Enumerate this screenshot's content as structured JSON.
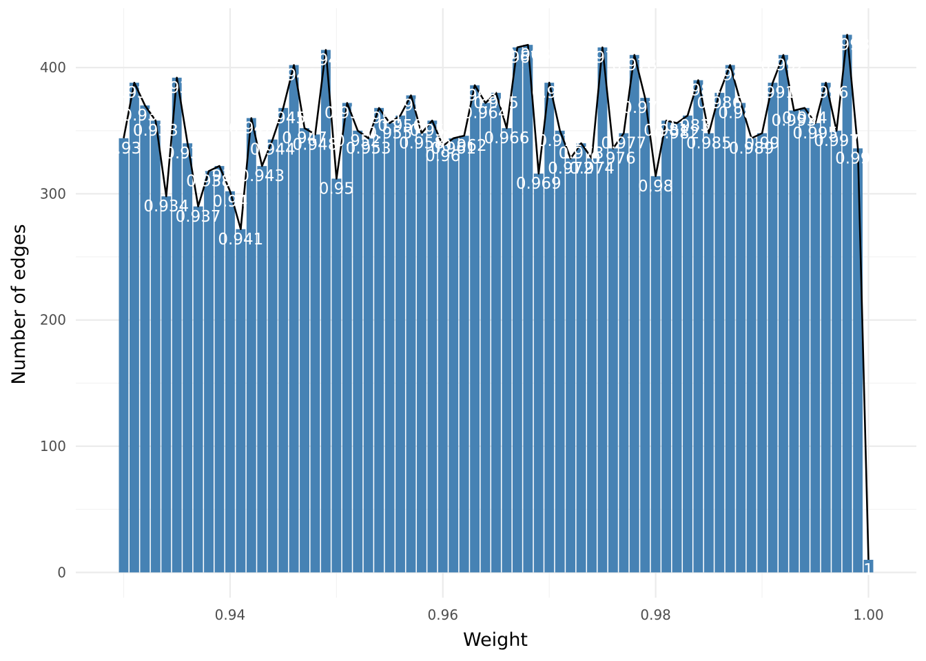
{
  "chart_data": {
    "type": "bar",
    "xlabel": "Weight",
    "ylabel": "Number of edges",
    "xlim": [
      0.9255,
      1.0045
    ],
    "ylim": [
      -20,
      447
    ],
    "x_ticks": [
      0.94,
      0.96,
      0.98,
      1.0
    ],
    "x_tick_labels": [
      "0.94",
      "0.96",
      "0.98",
      "1.00"
    ],
    "x_minor_ticks": [
      0.93,
      0.95,
      0.97,
      0.99
    ],
    "y_ticks": [
      0,
      100,
      200,
      300,
      400
    ],
    "y_tick_labels": [
      "0",
      "100",
      "200",
      "300",
      "400"
    ],
    "y_minor_ticks": [
      50,
      150,
      250,
      350
    ],
    "grid": true,
    "bar_color": "#4682b4",
    "line_color": "#000000",
    "overlay": "line through bar tops",
    "bars": [
      {
        "x": 0.93,
        "y": 344,
        "label": "0.93"
      },
      {
        "x": 0.931,
        "y": 388,
        "label": "0.931"
      },
      {
        "x": 0.932,
        "y": 370,
        "label": "0.932"
      },
      {
        "x": 0.933,
        "y": 358,
        "label": "0.933"
      },
      {
        "x": 0.934,
        "y": 298,
        "label": "0.934"
      },
      {
        "x": 0.935,
        "y": 392,
        "label": "0.935"
      },
      {
        "x": 0.936,
        "y": 340,
        "label": "0.936"
      },
      {
        "x": 0.937,
        "y": 290,
        "label": "0.937"
      },
      {
        "x": 0.938,
        "y": 318,
        "label": "0.938"
      },
      {
        "x": 0.939,
        "y": 322,
        "label": "0.939"
      },
      {
        "x": 0.94,
        "y": 302,
        "label": "0.94"
      },
      {
        "x": 0.941,
        "y": 272,
        "label": "0.941"
      },
      {
        "x": 0.942,
        "y": 360,
        "label": "0.942"
      },
      {
        "x": 0.943,
        "y": 322,
        "label": "0.943"
      },
      {
        "x": 0.944,
        "y": 343,
        "label": "0.944"
      },
      {
        "x": 0.945,
        "y": 368,
        "label": "0.945"
      },
      {
        "x": 0.946,
        "y": 402,
        "label": "0.946"
      },
      {
        "x": 0.947,
        "y": 352,
        "label": "0.947"
      },
      {
        "x": 0.948,
        "y": 347,
        "label": "0.948"
      },
      {
        "x": 0.949,
        "y": 414,
        "label": "0.949"
      },
      {
        "x": 0.95,
        "y": 312,
        "label": "0.95"
      },
      {
        "x": 0.951,
        "y": 372,
        "label": "0.951"
      },
      {
        "x": 0.952,
        "y": 350,
        "label": "0.952"
      },
      {
        "x": 0.953,
        "y": 344,
        "label": "0.953"
      },
      {
        "x": 0.954,
        "y": 368,
        "label": "0.954"
      },
      {
        "x": 0.955,
        "y": 356,
        "label": "0.955"
      },
      {
        "x": 0.956,
        "y": 362,
        "label": "0.956"
      },
      {
        "x": 0.957,
        "y": 378,
        "label": "0.957"
      },
      {
        "x": 0.958,
        "y": 348,
        "label": "0.958"
      },
      {
        "x": 0.959,
        "y": 358,
        "label": "0.959"
      },
      {
        "x": 0.96,
        "y": 338,
        "label": "0.96"
      },
      {
        "x": 0.961,
        "y": 344,
        "label": "0.961"
      },
      {
        "x": 0.962,
        "y": 346,
        "label": "0.962"
      },
      {
        "x": 0.963,
        "y": 386,
        "label": "0.963"
      },
      {
        "x": 0.964,
        "y": 372,
        "label": "0.964"
      },
      {
        "x": 0.965,
        "y": 380,
        "label": "0.965"
      },
      {
        "x": 0.966,
        "y": 352,
        "label": "0.966"
      },
      {
        "x": 0.967,
        "y": 416,
        "label": "0.967"
      },
      {
        "x": 0.968,
        "y": 418,
        "label": "0.968"
      },
      {
        "x": 0.969,
        "y": 316,
        "label": "0.969"
      },
      {
        "x": 0.97,
        "y": 388,
        "label": "0.97"
      },
      {
        "x": 0.971,
        "y": 350,
        "label": "0.971"
      },
      {
        "x": 0.972,
        "y": 328,
        "label": "0.972"
      },
      {
        "x": 0.973,
        "y": 340,
        "label": "0.973"
      },
      {
        "x": 0.974,
        "y": 328,
        "label": "0.974"
      },
      {
        "x": 0.975,
        "y": 416,
        "label": "0.975"
      },
      {
        "x": 0.976,
        "y": 336,
        "label": "0.976"
      },
      {
        "x": 0.977,
        "y": 348,
        "label": "0.977"
      },
      {
        "x": 0.978,
        "y": 410,
        "label": "0.978"
      },
      {
        "x": 0.979,
        "y": 376,
        "label": "0.979"
      },
      {
        "x": 0.98,
        "y": 314,
        "label": "0.98"
      },
      {
        "x": 0.981,
        "y": 358,
        "label": "0.981"
      },
      {
        "x": 0.982,
        "y": 356,
        "label": "0.982"
      },
      {
        "x": 0.983,
        "y": 362,
        "label": "0.983"
      },
      {
        "x": 0.984,
        "y": 390,
        "label": "0.984"
      },
      {
        "x": 0.985,
        "y": 348,
        "label": "0.985"
      },
      {
        "x": 0.986,
        "y": 380,
        "label": "0.986"
      },
      {
        "x": 0.987,
        "y": 402,
        "label": "0.987"
      },
      {
        "x": 0.988,
        "y": 372,
        "label": "0.988"
      },
      {
        "x": 0.989,
        "y": 344,
        "label": "0.989"
      },
      {
        "x": 0.99,
        "y": 348,
        "label": "0.99"
      },
      {
        "x": 0.991,
        "y": 388,
        "label": "0.991"
      },
      {
        "x": 0.992,
        "y": 410,
        "label": "0.992"
      },
      {
        "x": 0.993,
        "y": 366,
        "label": "0.993"
      },
      {
        "x": 0.994,
        "y": 368,
        "label": "0.994"
      },
      {
        "x": 0.995,
        "y": 356,
        "label": "0.995"
      },
      {
        "x": 0.996,
        "y": 388,
        "label": "0.996"
      },
      {
        "x": 0.997,
        "y": 350,
        "label": "0.997"
      },
      {
        "x": 0.998,
        "y": 426,
        "label": "0.998"
      },
      {
        "x": 0.999,
        "y": 336,
        "label": "0.999"
      },
      {
        "x": 1.0,
        "y": 10,
        "label": "1"
      }
    ]
  }
}
